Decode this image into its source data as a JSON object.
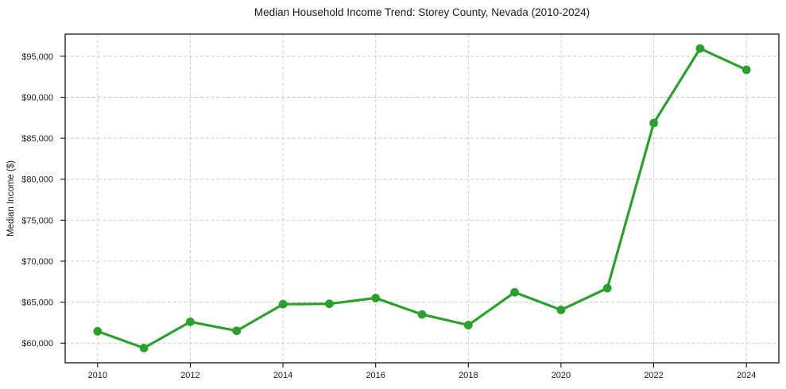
{
  "chart_data": {
    "type": "line",
    "title": "Median Household Income Trend: Storey County, Nevada (2010-2024)",
    "xlabel": "",
    "ylabel": "Median Income ($)",
    "series_name": "Median Household Income",
    "x": [
      2010,
      2011,
      2012,
      2013,
      2014,
      2015,
      2016,
      2017,
      2018,
      2019,
      2020,
      2021,
      2022,
      2023,
      2024
    ],
    "values": [
      61450,
      59400,
      62600,
      61500,
      64750,
      64800,
      65500,
      63500,
      62200,
      66200,
      64050,
      66700,
      86850,
      95950,
      93350
    ],
    "line_color": "#2ca02c",
    "marker": "circle",
    "marker_color": "#2ca02c",
    "grid": "on",
    "grid_style": "dashed",
    "grid_color": "#c8c8c8",
    "frame_color": "#000000",
    "text_color": "#1a1a1a",
    "legend": "none",
    "xlim": [
      2009.3,
      2024.7
    ],
    "ylim": [
      57600,
      97700
    ],
    "x_ticks": {
      "values": [
        2010,
        2012,
        2014,
        2016,
        2018,
        2020,
        2022,
        2024
      ],
      "labels": [
        "2010",
        "2012",
        "2014",
        "2016",
        "2018",
        "2020",
        "2022",
        "2024"
      ]
    },
    "y_ticks": {
      "values": [
        60000,
        65000,
        70000,
        75000,
        80000,
        85000,
        90000,
        95000
      ],
      "labels": [
        "$60,000",
        "$65,000",
        "$70,000",
        "$75,000",
        "$80,000",
        "$85,000",
        "$90,000",
        "$95,000"
      ]
    }
  }
}
